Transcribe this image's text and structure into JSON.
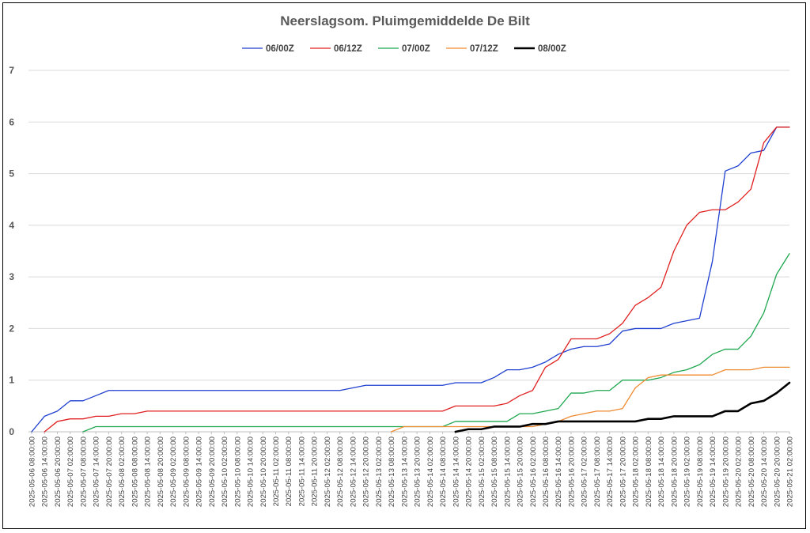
{
  "chart_data": {
    "type": "line",
    "title": "Neerslagsom. Pluimgemiddelde De Bilt",
    "xlabel": "",
    "ylabel": "",
    "ylim": [
      0,
      7
    ],
    "yticks": [
      "0",
      "1",
      "2",
      "3",
      "4",
      "5",
      "6",
      "7"
    ],
    "grid": true,
    "legend_position": "top",
    "categories": [
      "2025-05-06 08:00:00",
      "2025-05-06 14:00:00",
      "2025-05-06 20:00:00",
      "2025-05-07 02:00:00",
      "2025-05-07 08:00:00",
      "2025-05-07 14:00:00",
      "2025-05-07 20:00:00",
      "2025-05-08 02:00:00",
      "2025-05-08 08:00:00",
      "2025-05-08 14:00:00",
      "2025-05-08 20:00:00",
      "2025-05-09 02:00:00",
      "2025-05-09 08:00:00",
      "2025-05-09 14:00:00",
      "2025-05-09 20:00:00",
      "2025-05-10 02:00:00",
      "2025-05-10 08:00:00",
      "2025-05-10 14:00:00",
      "2025-05-10 20:00:00",
      "2025-05-11 02:00:00",
      "2025-05-11 08:00:00",
      "2025-05-11 14:00:00",
      "2025-05-11 20:00:00",
      "2025-05-12 02:00:00",
      "2025-05-12 08:00:00",
      "2025-05-12 14:00:00",
      "2025-05-12 20:00:00",
      "2025-05-13 02:00:00",
      "2025-05-13 08:00:00",
      "2025-05-13 14:00:00",
      "2025-05-13 20:00:00",
      "2025-05-14 02:00:00",
      "2025-05-14 08:00:00",
      "2025-05-14 14:00:00",
      "2025-05-14 20:00:00",
      "2025-05-15 02:00:00",
      "2025-05-15 08:00:00",
      "2025-05-15 14:00:00",
      "2025-05-15 20:00:00",
      "2025-05-16 02:00:00",
      "2025-05-16 08:00:00",
      "2025-05-16 14:00:00",
      "2025-05-16 20:00:00",
      "2025-05-17 02:00:00",
      "2025-05-17 08:00:00",
      "2025-05-17 14:00:00",
      "2025-05-17 20:00:00",
      "2025-05-18 02:00:00",
      "2025-05-18 08:00:00",
      "2025-05-18 14:00:00",
      "2025-05-18 20:00:00",
      "2025-05-19 02:00:00",
      "2025-05-19 08:00:00",
      "2025-05-19 14:00:00",
      "2025-05-19 20:00:00",
      "2025-05-20 02:00:00",
      "2025-05-20 08:00:00",
      "2025-05-20 14:00:00",
      "2025-05-20 20:00:00",
      "2025-05-21 02:00:00"
    ],
    "series": [
      {
        "name": "06/00Z",
        "color": "#1f3fd0",
        "width": 1.3,
        "values": [
          0,
          0.3,
          0.4,
          0.6,
          0.6,
          0.7,
          0.8,
          0.8,
          0.8,
          0.8,
          0.8,
          0.8,
          0.8,
          0.8,
          0.8,
          0.8,
          0.8,
          0.8,
          0.8,
          0.8,
          0.8,
          0.8,
          0.8,
          0.8,
          0.8,
          0.85,
          0.9,
          0.9,
          0.9,
          0.9,
          0.9,
          0.9,
          0.9,
          0.95,
          0.95,
          0.95,
          1.05,
          1.2,
          1.2,
          1.25,
          1.35,
          1.5,
          1.6,
          1.65,
          1.65,
          1.7,
          1.95,
          2.0,
          2.0,
          2.0,
          2.1,
          2.15,
          2.2,
          3.3,
          5.05,
          5.15,
          5.4,
          5.45,
          5.9,
          5.9
        ]
      },
      {
        "name": "06/12Z",
        "color": "#e02020",
        "width": 1.3,
        "values": [
          null,
          0,
          0.2,
          0.25,
          0.25,
          0.3,
          0.3,
          0.35,
          0.35,
          0.4,
          0.4,
          0.4,
          0.4,
          0.4,
          0.4,
          0.4,
          0.4,
          0.4,
          0.4,
          0.4,
          0.4,
          0.4,
          0.4,
          0.4,
          0.4,
          0.4,
          0.4,
          0.4,
          0.4,
          0.4,
          0.4,
          0.4,
          0.4,
          0.5,
          0.5,
          0.5,
          0.5,
          0.55,
          0.7,
          0.8,
          1.25,
          1.4,
          1.8,
          1.8,
          1.8,
          1.9,
          2.1,
          2.45,
          2.6,
          2.8,
          3.5,
          4.0,
          4.25,
          4.3,
          4.3,
          4.45,
          4.7,
          5.6,
          5.9,
          5.9
        ]
      },
      {
        "name": "07/00Z",
        "color": "#1fa84f",
        "width": 1.3,
        "values": [
          null,
          null,
          null,
          null,
          0,
          0.1,
          0.1,
          0.1,
          0.1,
          0.1,
          0.1,
          0.1,
          0.1,
          0.1,
          0.1,
          0.1,
          0.1,
          0.1,
          0.1,
          0.1,
          0.1,
          0.1,
          0.1,
          0.1,
          0.1,
          0.1,
          0.1,
          0.1,
          0.1,
          0.1,
          0.1,
          0.1,
          0.1,
          0.2,
          0.2,
          0.2,
          0.2,
          0.2,
          0.35,
          0.35,
          0.4,
          0.45,
          0.75,
          0.75,
          0.8,
          0.8,
          1.0,
          1.0,
          1.0,
          1.05,
          1.15,
          1.2,
          1.3,
          1.5,
          1.6,
          1.6,
          1.85,
          2.3,
          3.05,
          3.45
        ]
      },
      {
        "name": "07/12Z",
        "color": "#f08a30",
        "width": 1.3,
        "values": [
          null,
          null,
          null,
          null,
          null,
          null,
          null,
          null,
          null,
          null,
          null,
          null,
          null,
          null,
          null,
          null,
          null,
          null,
          null,
          null,
          null,
          null,
          null,
          null,
          null,
          null,
          null,
          null,
          0,
          0.1,
          0.1,
          0.1,
          0.1,
          0.1,
          0.1,
          0.1,
          0.1,
          0.1,
          0.1,
          0.1,
          0.15,
          0.2,
          0.3,
          0.35,
          0.4,
          0.4,
          0.45,
          0.85,
          1.05,
          1.1,
          1.1,
          1.1,
          1.1,
          1.1,
          1.2,
          1.2,
          1.2,
          1.25,
          1.25,
          1.25
        ]
      },
      {
        "name": "08/00Z",
        "color": "#000000",
        "width": 2.6,
        "values": [
          null,
          null,
          null,
          null,
          null,
          null,
          null,
          null,
          null,
          null,
          null,
          null,
          null,
          null,
          null,
          null,
          null,
          null,
          null,
          null,
          null,
          null,
          null,
          null,
          null,
          null,
          null,
          null,
          null,
          null,
          null,
          null,
          null,
          0,
          0.05,
          0.05,
          0.1,
          0.1,
          0.1,
          0.15,
          0.15,
          0.2,
          0.2,
          0.2,
          0.2,
          0.2,
          0.2,
          0.2,
          0.25,
          0.25,
          0.3,
          0.3,
          0.3,
          0.3,
          0.4,
          0.4,
          0.55,
          0.6,
          0.75,
          0.95
        ]
      }
    ]
  }
}
